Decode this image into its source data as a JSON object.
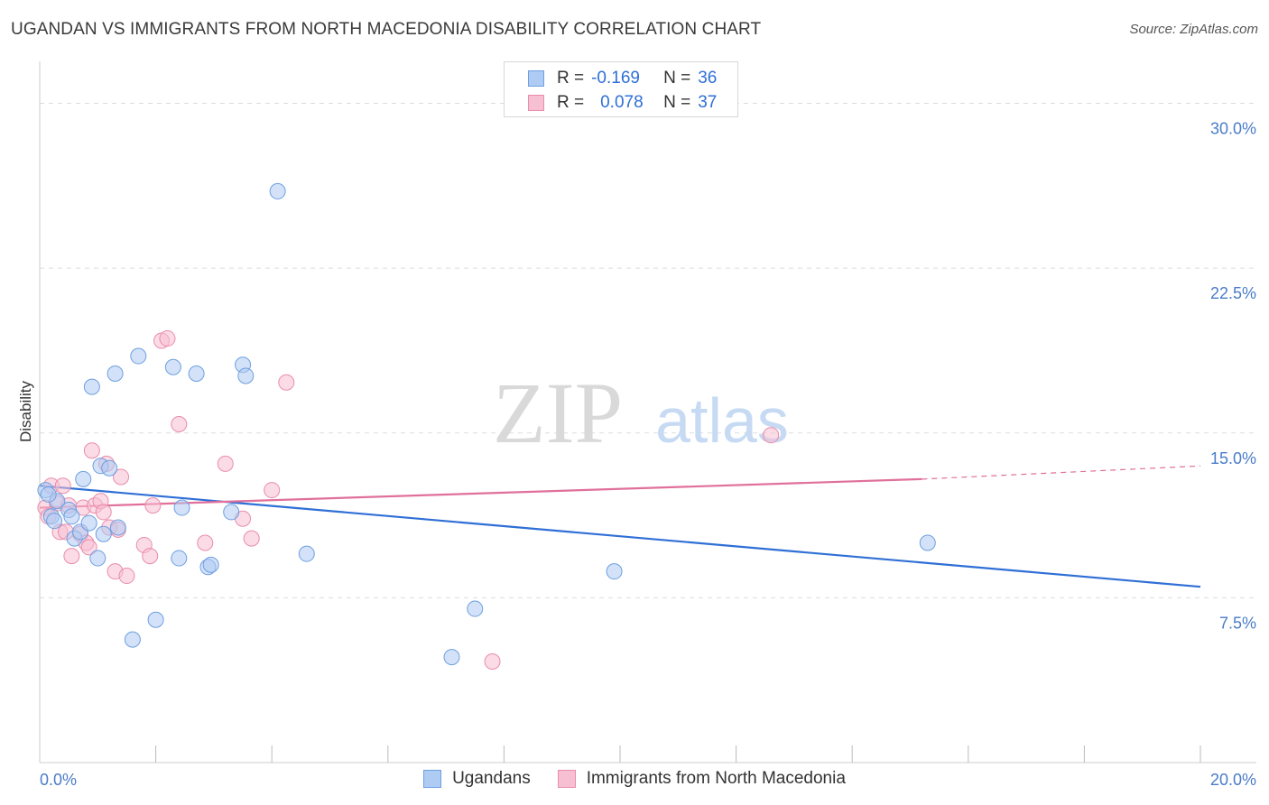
{
  "header": {
    "title": "UGANDAN VS IMMIGRANTS FROM NORTH MACEDONIA DISABILITY CORRELATION CHART",
    "source": "Source: ZipAtlas.com"
  },
  "watermark": {
    "zip": "ZIP",
    "atlas": "atlas"
  },
  "legend": {
    "rows": [
      {
        "r_label": "R =",
        "r_value": "-0.169",
        "n_label": "N =",
        "n_value": "36"
      },
      {
        "r_label": "R =",
        "r_value": "0.078",
        "n_label": "N =",
        "n_value": "37"
      }
    ]
  },
  "bottom_legend": {
    "series1": "Ugandans",
    "series2": "Immigrants from North Macedonia"
  },
  "colors": {
    "blue_fill": "#aecbf3",
    "blue_stroke": "#6e9fe0",
    "blue_line": "#2f6fd6",
    "pink_fill": "#f7bfd2",
    "pink_stroke": "#e98cac",
    "pink_line": "#e0709a",
    "grid": "#dddddd",
    "axis_text": "#4a7cc9"
  },
  "chart_data": {
    "type": "scatter",
    "title": "UGANDAN VS IMMIGRANTS FROM NORTH MACEDONIA DISABILITY CORRELATION CHART",
    "xlabel": "",
    "ylabel": "Disability",
    "xlim": [
      0,
      20
    ],
    "ylim": [
      0,
      31.5
    ],
    "x_tick_labels": [
      "0.0%",
      "20.0%"
    ],
    "y_ticks": [
      {
        "value": 7.5,
        "label": "7.5%"
      },
      {
        "value": 15,
        "label": "15.0%"
      },
      {
        "value": 22.5,
        "label": "22.5%"
      },
      {
        "value": 30,
        "label": "30.0%"
      }
    ],
    "series": [
      {
        "name": "Ugandans",
        "color": "#6e9fe0",
        "r": -0.169,
        "n": 36,
        "points": [
          [
            0.1,
            12.4
          ],
          [
            0.2,
            11.2
          ],
          [
            0.3,
            11.9
          ],
          [
            0.25,
            11.0
          ],
          [
            0.5,
            11.5
          ],
          [
            0.55,
            11.2
          ],
          [
            0.6,
            10.2
          ],
          [
            0.7,
            10.5
          ],
          [
            0.75,
            12.9
          ],
          [
            0.85,
            10.9
          ],
          [
            0.9,
            17.1
          ],
          [
            1.0,
            9.3
          ],
          [
            1.05,
            13.5
          ],
          [
            1.1,
            10.4
          ],
          [
            1.2,
            13.4
          ],
          [
            1.3,
            17.7
          ],
          [
            1.35,
            10.7
          ],
          [
            1.6,
            5.6
          ],
          [
            1.7,
            18.5
          ],
          [
            2.0,
            6.5
          ],
          [
            2.3,
            18.0
          ],
          [
            2.4,
            9.3
          ],
          [
            2.45,
            11.6
          ],
          [
            2.7,
            17.7
          ],
          [
            2.9,
            8.9
          ],
          [
            2.95,
            9.0
          ],
          [
            3.3,
            11.4
          ],
          [
            3.5,
            18.1
          ],
          [
            3.55,
            17.6
          ],
          [
            4.1,
            26.0
          ],
          [
            4.6,
            9.5
          ],
          [
            7.1,
            4.8
          ],
          [
            7.5,
            7.0
          ],
          [
            9.9,
            8.7
          ],
          [
            15.3,
            10.0
          ],
          [
            0.15,
            12.2
          ]
        ],
        "trend": {
          "x": [
            0,
            20
          ],
          "y": [
            12.6,
            8.0
          ]
        }
      },
      {
        "name": "Immigrants from North Macedonia",
        "color": "#e98cac",
        "r": 0.078,
        "n": 37,
        "points": [
          [
            0.1,
            11.6
          ],
          [
            0.15,
            11.2
          ],
          [
            0.2,
            12.6
          ],
          [
            0.3,
            11.8
          ],
          [
            0.35,
            10.5
          ],
          [
            0.4,
            12.6
          ],
          [
            0.45,
            10.5
          ],
          [
            0.5,
            11.7
          ],
          [
            0.55,
            9.4
          ],
          [
            0.7,
            10.4
          ],
          [
            0.75,
            11.6
          ],
          [
            0.8,
            10.0
          ],
          [
            0.85,
            9.8
          ],
          [
            0.9,
            14.2
          ],
          [
            0.95,
            11.7
          ],
          [
            1.05,
            11.9
          ],
          [
            1.1,
            11.4
          ],
          [
            1.15,
            13.6
          ],
          [
            1.2,
            10.7
          ],
          [
            1.3,
            8.7
          ],
          [
            1.35,
            10.6
          ],
          [
            1.4,
            13.0
          ],
          [
            1.5,
            8.5
          ],
          [
            1.8,
            9.9
          ],
          [
            1.9,
            9.4
          ],
          [
            1.95,
            11.7
          ],
          [
            2.1,
            19.2
          ],
          [
            2.2,
            19.3
          ],
          [
            2.4,
            15.4
          ],
          [
            2.85,
            10.0
          ],
          [
            3.2,
            13.6
          ],
          [
            3.5,
            11.1
          ],
          [
            3.65,
            10.2
          ],
          [
            4.0,
            12.4
          ],
          [
            4.25,
            17.3
          ],
          [
            7.8,
            4.6
          ],
          [
            12.6,
            14.9
          ]
        ],
        "trend": {
          "x": [
            0,
            15.2
          ],
          "y": [
            11.6,
            12.9
          ]
        },
        "trend_dashed": {
          "x": [
            15.2,
            20
          ],
          "y": [
            12.9,
            13.5
          ]
        }
      }
    ]
  }
}
